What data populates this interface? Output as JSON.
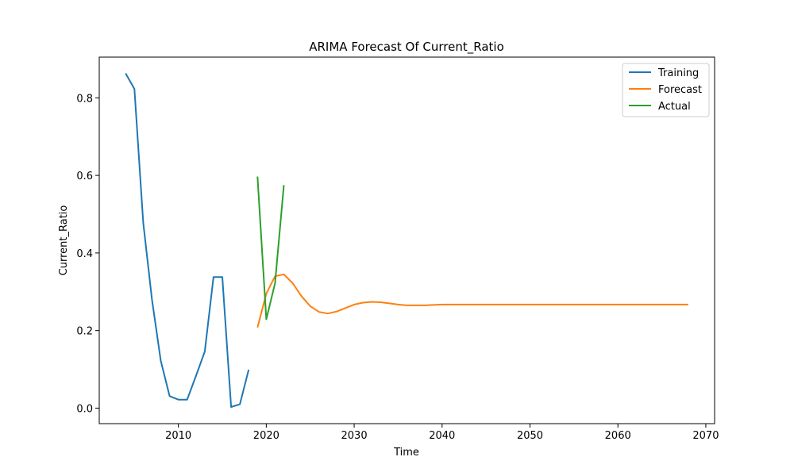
{
  "chart_data": {
    "type": "line",
    "title": "ARIMA Forecast Of Current_Ratio",
    "xlabel": "Time",
    "ylabel": "Current_Ratio",
    "xlim": [
      2001,
      2071
    ],
    "ylim": [
      -0.04,
      0.905
    ],
    "xticks": [
      2010,
      2020,
      2030,
      2040,
      2050,
      2060,
      2070
    ],
    "yticks": [
      0.0,
      0.2,
      0.4,
      0.6,
      0.8
    ],
    "grid": false,
    "legend_position": "upper right",
    "series": [
      {
        "name": "Training",
        "color": "#1f77b4",
        "x": [
          2004,
          2005,
          2006,
          2007,
          2008,
          2009,
          2010,
          2011,
          2012,
          2013,
          2014,
          2015,
          2016,
          2017,
          2018
        ],
        "y": [
          0.863,
          0.823,
          0.478,
          0.28,
          0.122,
          0.031,
          0.022,
          0.022,
          0.083,
          0.146,
          0.338,
          0.338,
          0.003,
          0.01,
          0.099
        ]
      },
      {
        "name": "Forecast",
        "color": "#ff7f0e",
        "x": [
          2019,
          2020,
          2021,
          2022,
          2023,
          2024,
          2025,
          2026,
          2027,
          2028,
          2029,
          2030,
          2031,
          2032,
          2033,
          2034,
          2035,
          2036,
          2037,
          2038,
          2039,
          2040,
          2041,
          2042,
          2043,
          2044,
          2045,
          2046,
          2047,
          2048,
          2049,
          2050,
          2051,
          2052,
          2053,
          2054,
          2055,
          2056,
          2057,
          2058,
          2059,
          2060,
          2061,
          2062,
          2063,
          2064,
          2065,
          2066,
          2067,
          2068
        ],
        "y": [
          0.208,
          0.295,
          0.34,
          0.345,
          0.322,
          0.289,
          0.263,
          0.248,
          0.244,
          0.249,
          0.258,
          0.267,
          0.272,
          0.274,
          0.273,
          0.27,
          0.267,
          0.265,
          0.265,
          0.265,
          0.266,
          0.267,
          0.267,
          0.267,
          0.267,
          0.267,
          0.267,
          0.267,
          0.267,
          0.267,
          0.267,
          0.267,
          0.267,
          0.267,
          0.267,
          0.267,
          0.267,
          0.267,
          0.267,
          0.267,
          0.267,
          0.267,
          0.267,
          0.267,
          0.267,
          0.267,
          0.267,
          0.267,
          0.267,
          0.267
        ]
      },
      {
        "name": "Actual",
        "color": "#2ca02c",
        "x": [
          2019,
          2020,
          2021,
          2022
        ],
        "y": [
          0.597,
          0.229,
          0.322,
          0.575
        ]
      }
    ]
  }
}
